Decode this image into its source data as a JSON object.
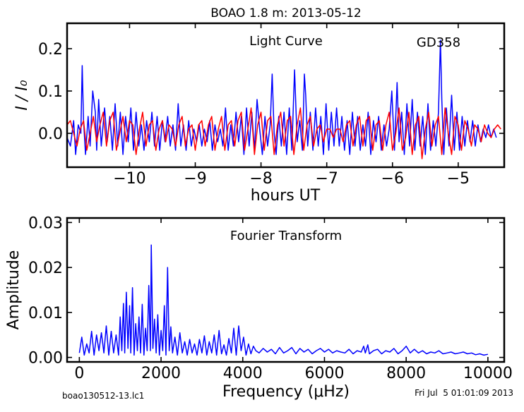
{
  "title": "BOAO 1.8 m:  2013-05-12",
  "footer": {
    "filename": "boao130512-13.lc1",
    "timestamp": "Fri Jul  5 01:01:09 2013"
  },
  "colors": {
    "observed": "#0000ff",
    "model": "#ff0000",
    "ft": "#0000ff"
  },
  "chart_data": [
    {
      "type": "line",
      "inset_title": "Light Curve",
      "star_label": "GD358",
      "xlabel": "hours UT",
      "ylabel": "I / I₀",
      "xlim": [
        -10.95,
        -4.3
      ],
      "ylim": [
        -0.08,
        0.26
      ],
      "xticks": [
        -10,
        -9,
        -8,
        -7,
        -6,
        -5
      ],
      "xtick_labels": [
        "−10",
        "−9",
        "−8",
        "−7",
        "−6",
        "−5"
      ],
      "yticks": [
        0.0,
        0.1,
        0.2
      ],
      "ytick_labels": [
        "0.0",
        "0.1",
        "0.2"
      ],
      "series": [
        {
          "role": "observed",
          "x": [
            -10.95,
            -10.9,
            -10.85,
            -10.82,
            -10.78,
            -10.74,
            -10.72,
            -10.7,
            -10.67,
            -10.63,
            -10.6,
            -10.56,
            -10.52,
            -10.5,
            -10.47,
            -10.43,
            -10.38,
            -10.34,
            -10.3,
            -10.26,
            -10.22,
            -10.18,
            -10.14,
            -10.1,
            -10.06,
            -10.02,
            -9.98,
            -9.94,
            -9.9,
            -9.86,
            -9.82,
            -9.78,
            -9.74,
            -9.7,
            -9.66,
            -9.62,
            -9.58,
            -9.54,
            -9.5,
            -9.46,
            -9.42,
            -9.38,
            -9.34,
            -9.3,
            -9.26,
            -9.22,
            -9.18,
            -9.14,
            -9.1,
            -9.06,
            -9.02,
            -8.98,
            -8.94,
            -8.9,
            -8.86,
            -8.82,
            -8.78,
            -8.74,
            -8.7,
            -8.66,
            -8.62,
            -8.58,
            -8.54,
            -8.5,
            -8.46,
            -8.42,
            -8.38,
            -8.34,
            -8.3,
            -8.26,
            -8.22,
            -8.18,
            -8.14,
            -8.1,
            -8.06,
            -8.02,
            -7.98,
            -7.94,
            -7.9,
            -7.86,
            -7.83,
            -7.8,
            -7.77,
            -7.73,
            -7.69,
            -7.65,
            -7.61,
            -7.57,
            -7.53,
            -7.49,
            -7.45,
            -7.41,
            -7.37,
            -7.34,
            -7.32,
            -7.29,
            -7.25,
            -7.21,
            -7.17,
            -7.13,
            -7.09,
            -7.05,
            -7.01,
            -6.97,
            -6.93,
            -6.89,
            -6.85,
            -6.81,
            -6.77,
            -6.73,
            -6.69,
            -6.65,
            -6.61,
            -6.57,
            -6.53,
            -6.49,
            -6.45,
            -6.41,
            -6.37,
            -6.33,
            -6.29,
            -6.25,
            -6.21,
            -6.17,
            -6.13,
            -6.09,
            -6.05,
            -6.01,
            -5.97,
            -5.93,
            -5.9,
            -5.86,
            -5.82,
            -5.78,
            -5.74,
            -5.7,
            -5.66,
            -5.62,
            -5.58,
            -5.54,
            -5.5,
            -5.46,
            -5.42,
            -5.38,
            -5.34,
            -5.3,
            -5.27,
            -5.25,
            -5.22,
            -5.18,
            -5.14,
            -5.1,
            -5.06,
            -5.02,
            -4.98,
            -4.94,
            -4.9,
            -4.86,
            -4.82,
            -4.78,
            -4.74,
            -4.7,
            -4.66,
            -4.62,
            -4.58,
            -4.54,
            -4.5,
            -4.46,
            -4.42
          ],
          "y": [
            -0.01,
            -0.03,
            0.03,
            -0.05,
            0.02,
            0.0,
            0.16,
            0.03,
            -0.05,
            0.04,
            -0.03,
            0.1,
            0.05,
            -0.04,
            0.08,
            -0.03,
            0.06,
            -0.02,
            0.04,
            -0.04,
            0.07,
            -0.03,
            0.05,
            -0.05,
            0.04,
            -0.02,
            0.06,
            -0.04,
            0.05,
            -0.03,
            0.02,
            -0.04,
            0.03,
            -0.02,
            0.05,
            -0.03,
            0.04,
            -0.04,
            0.03,
            -0.02,
            0.04,
            -0.03,
            0.02,
            -0.04,
            0.07,
            -0.03,
            0.02,
            -0.04,
            0.03,
            -0.03,
            0.01,
            -0.02,
            0.02,
            -0.03,
            0.01,
            -0.02,
            0.03,
            -0.04,
            0.02,
            -0.02,
            0.01,
            -0.03,
            0.06,
            -0.04,
            0.02,
            -0.03,
            0.05,
            -0.02,
            0.04,
            -0.05,
            0.06,
            -0.03,
            0.05,
            -0.04,
            0.08,
            0.01,
            -0.05,
            0.04,
            -0.03,
            0.02,
            0.14,
            0.0,
            -0.05,
            0.04,
            -0.03,
            0.05,
            -0.05,
            0.06,
            -0.04,
            0.15,
            -0.02,
            0.03,
            -0.04,
            0.14,
            0.09,
            -0.03,
            0.05,
            -0.04,
            0.06,
            -0.03,
            0.04,
            -0.05,
            0.07,
            -0.04,
            0.05,
            -0.03,
            0.06,
            -0.03,
            0.04,
            -0.04,
            0.03,
            -0.05,
            0.05,
            -0.03,
            0.04,
            -0.04,
            0.02,
            -0.03,
            0.05,
            -0.05,
            0.03,
            -0.02,
            0.04,
            -0.04,
            0.02,
            -0.03,
            0.01,
            0.1,
            -0.04,
            0.12,
            -0.02,
            0.05,
            -0.05,
            0.07,
            -0.03,
            0.08,
            -0.04,
            0.05,
            -0.03,
            0.04,
            -0.05,
            0.07,
            -0.04,
            0.03,
            -0.03,
            0.05,
            0.22,
            0.08,
            -0.05,
            0.06,
            -0.03,
            0.09,
            -0.04,
            0.05,
            -0.04,
            0.04,
            -0.03,
            0.03,
            -0.02,
            0.03,
            -0.03,
            0.02,
            -0.02,
            0.01,
            -0.01,
            0.02,
            -0.01,
            0.01,
            -0.01
          ]
        },
        {
          "role": "model",
          "x": [
            -10.95,
            -10.9,
            -10.85,
            -10.8,
            -10.75,
            -10.7,
            -10.65,
            -10.6,
            -10.55,
            -10.5,
            -10.45,
            -10.4,
            -10.35,
            -10.3,
            -10.25,
            -10.2,
            -10.15,
            -10.1,
            -10.05,
            -10.0,
            -9.95,
            -9.9,
            -9.85,
            -9.8,
            -9.75,
            -9.7,
            -9.65,
            -9.6,
            -9.55,
            -9.5,
            -9.45,
            -9.4,
            -9.35,
            -9.3,
            -9.25,
            -9.2,
            -9.15,
            -9.1,
            -9.05,
            -9.0,
            -8.95,
            -8.9,
            -8.85,
            -8.8,
            -8.75,
            -8.7,
            -8.65,
            -8.6,
            -8.55,
            -8.5,
            -8.45,
            -8.4,
            -8.35,
            -8.3,
            -8.25,
            -8.2,
            -8.15,
            -8.1,
            -8.05,
            -8.0,
            -7.95,
            -7.9,
            -7.85,
            -7.8,
            -7.75,
            -7.7,
            -7.65,
            -7.6,
            -7.55,
            -7.5,
            -7.45,
            -7.4,
            -7.35,
            -7.3,
            -7.25,
            -7.2,
            -7.15,
            -7.1,
            -7.05,
            -7.0,
            -6.95,
            -6.9,
            -6.85,
            -6.8,
            -6.75,
            -6.7,
            -6.65,
            -6.6,
            -6.55,
            -6.5,
            -6.45,
            -6.4,
            -6.35,
            -6.3,
            -6.25,
            -6.2,
            -6.15,
            -6.1,
            -6.05,
            -6.0,
            -5.95,
            -5.9,
            -5.85,
            -5.8,
            -5.75,
            -5.7,
            -5.65,
            -5.6,
            -5.55,
            -5.5,
            -5.45,
            -5.4,
            -5.35,
            -5.3,
            -5.25,
            -5.2,
            -5.15,
            -5.1,
            -5.05,
            -5.0,
            -4.95,
            -4.9,
            -4.85,
            -4.8,
            -4.75,
            -4.7,
            -4.65,
            -4.6,
            -4.55,
            -4.5,
            -4.45,
            -4.4,
            -4.35
          ],
          "y": [
            0.02,
            0.03,
            0.0,
            -0.03,
            0.01,
            0.03,
            -0.04,
            0.0,
            0.04,
            -0.02,
            0.02,
            0.05,
            -0.03,
            0.03,
            0.05,
            -0.04,
            0.0,
            0.04,
            -0.02,
            0.03,
            0.02,
            -0.05,
            0.01,
            0.05,
            -0.03,
            0.02,
            0.03,
            -0.04,
            0.01,
            0.03,
            -0.02,
            0.02,
            0.01,
            -0.03,
            0.02,
            0.04,
            -0.03,
            0.01,
            0.02,
            -0.04,
            0.02,
            0.03,
            -0.03,
            0.02,
            0.04,
            -0.04,
            0.01,
            0.04,
            -0.04,
            0.02,
            0.03,
            -0.03,
            0.03,
            0.05,
            -0.04,
            0.01,
            0.06,
            -0.05,
            0.02,
            0.05,
            -0.04,
            0.03,
            0.04,
            -0.05,
            0.02,
            0.05,
            -0.03,
            0.03,
            0.04,
            -0.05,
            0.02,
            0.06,
            -0.04,
            0.02,
            0.04,
            -0.03,
            0.01,
            0.02,
            -0.02,
            0.01,
            0.01,
            -0.01,
            0.01,
            0.01,
            -0.02,
            0.02,
            0.03,
            -0.03,
            0.02,
            0.04,
            -0.03,
            0.03,
            0.04,
            -0.04,
            0.02,
            0.03,
            -0.04,
            0.02,
            0.05,
            -0.04,
            0.0,
            0.06,
            -0.04,
            -0.01,
            0.05,
            -0.05,
            0.02,
            0.04,
            -0.06,
            0.01,
            0.05,
            -0.03,
            0.02,
            0.04,
            -0.05,
            0.06,
            0.0,
            -0.05,
            0.04,
            0.02,
            -0.04,
            0.03,
            0.01,
            -0.03,
            0.02,
            0.01,
            -0.02,
            0.02,
            0.0,
            -0.01,
            0.01,
            0.02,
            0.01
          ]
        }
      ]
    },
    {
      "type": "line",
      "inset_title": "Fourier Transform",
      "xlabel": "Frequency (μHz)",
      "ylabel": "Amplitude",
      "xlim": [
        -300,
        10400
      ],
      "ylim": [
        -0.001,
        0.031
      ],
      "xticks": [
        0,
        2000,
        4000,
        6000,
        8000,
        10000
      ],
      "xtick_labels": [
        "0",
        "2000",
        "4000",
        "6000",
        "8000",
        "10000"
      ],
      "yticks": [
        0.0,
        0.01,
        0.02,
        0.03
      ],
      "ytick_labels": [
        "0.00",
        "0.01",
        "0.02",
        "0.03"
      ],
      "series": [
        {
          "role": "ft",
          "x": [
            0,
            60,
            120,
            180,
            240,
            300,
            360,
            420,
            480,
            540,
            600,
            660,
            720,
            780,
            840,
            900,
            960,
            1000,
            1040,
            1080,
            1110,
            1150,
            1190,
            1230,
            1260,
            1300,
            1340,
            1380,
            1420,
            1460,
            1500,
            1540,
            1580,
            1620,
            1660,
            1700,
            1740,
            1760,
            1800,
            1840,
            1880,
            1920,
            1960,
            2000,
            2040,
            2080,
            2120,
            2160,
            2200,
            2240,
            2280,
            2340,
            2400,
            2460,
            2520,
            2580,
            2640,
            2700,
            2760,
            2820,
            2880,
            2940,
            3000,
            3060,
            3120,
            3180,
            3240,
            3300,
            3360,
            3420,
            3480,
            3540,
            3600,
            3660,
            3720,
            3780,
            3840,
            3900,
            3960,
            4020,
            4080,
            4140,
            4200,
            4260,
            4320,
            4400,
            4500,
            4600,
            4700,
            4800,
            4900,
            5000,
            5100,
            5200,
            5300,
            5400,
            5500,
            5600,
            5700,
            5800,
            5900,
            6000,
            6100,
            6200,
            6300,
            6400,
            6500,
            6600,
            6700,
            6800,
            6900,
            6960,
            7000,
            7060,
            7100,
            7200,
            7300,
            7400,
            7500,
            7600,
            7700,
            7800,
            7900,
            8000,
            8100,
            8200,
            8300,
            8400,
            8500,
            8600,
            8700,
            8800,
            8900,
            9000,
            9100,
            9200,
            9300,
            9400,
            9500,
            9600,
            9700,
            9800,
            9900,
            10000
          ],
          "y": [
            0.001,
            0.0045,
            0.0005,
            0.003,
            0.001,
            0.0058,
            0.0005,
            0.005,
            0.0015,
            0.0055,
            0.001,
            0.007,
            0.0005,
            0.0058,
            0.001,
            0.005,
            0.0005,
            0.009,
            0.0015,
            0.012,
            0.001,
            0.0145,
            0.002,
            0.0115,
            0.001,
            0.0155,
            0.0005,
            0.0075,
            0.0015,
            0.009,
            0.001,
            0.0118,
            0.0005,
            0.0065,
            0.0015,
            0.016,
            0.0015,
            0.025,
            0.002,
            0.0085,
            0.001,
            0.0095,
            0.0005,
            0.006,
            0.0015,
            0.0115,
            0.0005,
            0.02,
            0.0015,
            0.0068,
            0.001,
            0.0045,
            0.0005,
            0.0055,
            0.001,
            0.0035,
            0.0005,
            0.004,
            0.001,
            0.003,
            0.0005,
            0.004,
            0.001,
            0.0048,
            0.0005,
            0.0035,
            0.001,
            0.005,
            0.0005,
            0.006,
            0.0008,
            0.0028,
            0.0005,
            0.0042,
            0.001,
            0.0065,
            0.0005,
            0.007,
            0.0015,
            0.0045,
            0.0005,
            0.003,
            0.0008,
            0.0025,
            0.0015,
            0.001,
            0.002,
            0.0012,
            0.0018,
            0.0008,
            0.0022,
            0.001,
            0.0015,
            0.0022,
            0.0008,
            0.002,
            0.0012,
            0.0018,
            0.0008,
            0.0015,
            0.002,
            0.0012,
            0.0018,
            0.001,
            0.0015,
            0.0012,
            0.001,
            0.0018,
            0.0008,
            0.0015,
            0.0012,
            0.0025,
            0.001,
            0.0028,
            0.0008,
            0.0015,
            0.0018,
            0.0008,
            0.0015,
            0.0012,
            0.002,
            0.0008,
            0.0015,
            0.0025,
            0.001,
            0.0018,
            0.001,
            0.0015,
            0.0008,
            0.0012,
            0.001,
            0.0015,
            0.0008,
            0.001,
            0.0012,
            0.0008,
            0.001,
            0.0012,
            0.0008,
            0.001,
            0.0006,
            0.0008,
            0.0005,
            0.0007
          ]
        }
      ]
    }
  ]
}
